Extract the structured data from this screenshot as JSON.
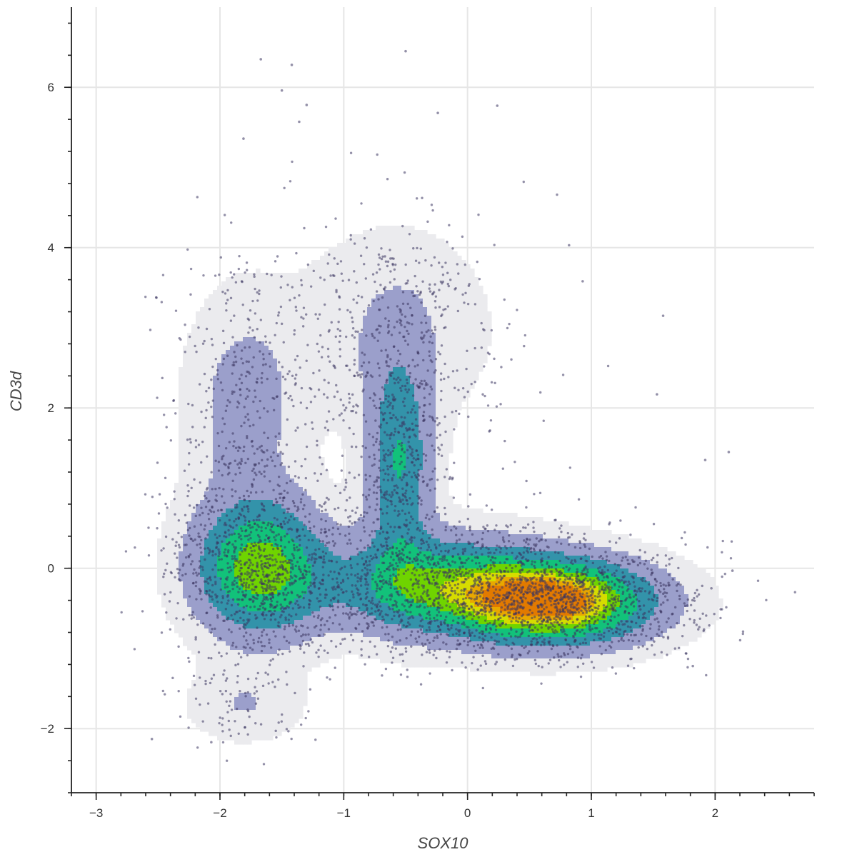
{
  "chart_data": {
    "type": "scatter",
    "subtype": "scatter-with-density-contours",
    "title": "",
    "xlabel": "SOX10",
    "ylabel": "CD3d",
    "xlim": [
      -3.2,
      2.8
    ],
    "ylim": [
      -2.8,
      7.0
    ],
    "x_ticks": [
      -3,
      -2,
      -1,
      0,
      1,
      2
    ],
    "x_tick_labels": [
      "−3",
      "−2",
      "−1",
      "0",
      "1",
      "2"
    ],
    "y_ticks": [
      -2,
      0,
      2,
      4,
      6
    ],
    "y_tick_labels": [
      "−2",
      "0",
      "2",
      "4",
      "6"
    ],
    "grid": true,
    "legend": "none",
    "point_color": "#3b3560",
    "point_opacity": 0.55,
    "point_count_estimate": 5000,
    "density_clusters": [
      {
        "center": [
          -1.68,
          0.0
        ],
        "sx": 0.34,
        "sy": 0.55,
        "weight": 0.7
      },
      {
        "center": [
          -0.55,
          1.3
        ],
        "sx": 0.17,
        "sy": 0.9,
        "weight": 0.45
      },
      {
        "center": [
          0.7,
          -0.42
        ],
        "sx": 0.52,
        "sy": 0.34,
        "weight": 1.0
      },
      {
        "center": [
          -0.25,
          -0.2
        ],
        "sx": 0.6,
        "sy": 0.4,
        "weight": 0.55
      },
      {
        "center": [
          -1.8,
          2.0
        ],
        "sx": 0.3,
        "sy": 0.9,
        "weight": 0.18
      },
      {
        "center": [
          -1.8,
          -1.7
        ],
        "sx": 0.3,
        "sy": 0.3,
        "weight": 0.12
      },
      {
        "center": [
          -0.6,
          3.0
        ],
        "sx": 0.5,
        "sy": 0.8,
        "weight": 0.12
      }
    ],
    "contour_levels": [
      {
        "level": 1,
        "fill": "#ebebee"
      },
      {
        "level": 2,
        "fill": "#9b9fcb"
      },
      {
        "level": 3,
        "fill": "#3393aa"
      },
      {
        "level": 4,
        "fill": "#12c27a"
      },
      {
        "level": 5,
        "fill": "#6fd400"
      },
      {
        "level": 6,
        "fill": "#d6dc00"
      },
      {
        "level": 7,
        "fill": "#e8a800"
      },
      {
        "level": 8,
        "fill": "#e27a00"
      }
    ],
    "outlier_points": [
      [
        -1.67,
        6.35
      ],
      [
        -1.42,
        6.28
      ],
      [
        -0.5,
        6.45
      ],
      [
        0.24,
        5.77
      ],
      [
        -1.5,
        5.96
      ],
      [
        -1.3,
        5.78
      ],
      [
        -1.36,
        5.57
      ],
      [
        -0.24,
        5.68
      ],
      [
        -1.81,
        5.36
      ],
      [
        0.93,
        3.58
      ],
      [
        1.58,
        3.15
      ],
      [
        1.53,
        2.17
      ],
      [
        2.11,
        1.45
      ],
      [
        1.92,
        1.35
      ],
      [
        -2.55,
        -2.13
      ],
      [
        -2.07,
        -2.17
      ],
      [
        2.14,
        -0.03
      ],
      [
        1.97,
        -0.25
      ],
      [
        1.82,
        -1.22
      ],
      [
        0.82,
        4.03
      ]
    ]
  }
}
